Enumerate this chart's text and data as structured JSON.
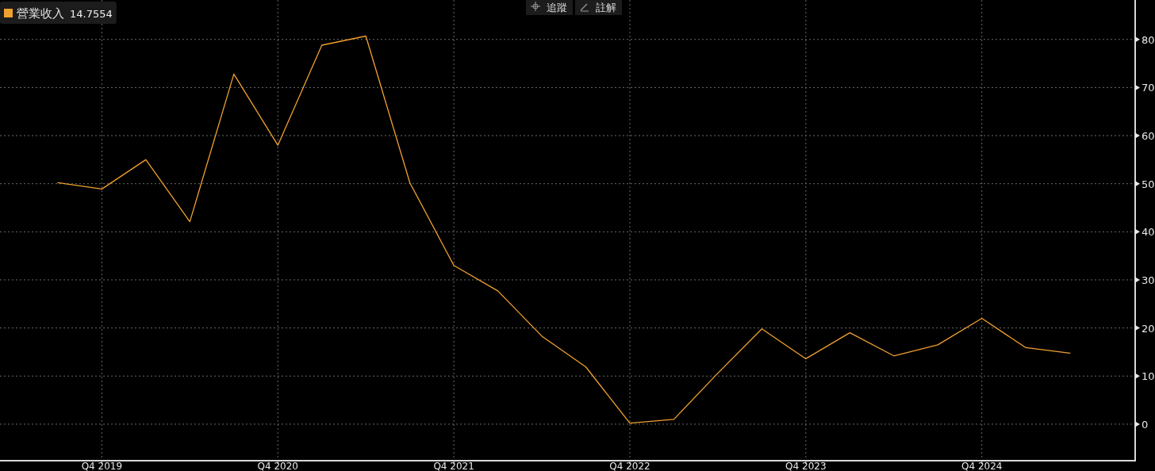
{
  "chart_data": {
    "type": "line",
    "categories": [
      null,
      "Q4 2019",
      null,
      null,
      null,
      "Q4 2020",
      null,
      null,
      null,
      "Q4 2021",
      null,
      null,
      null,
      "Q4 2022",
      null,
      null,
      null,
      "Q4 2023",
      null,
      null,
      null,
      "Q4 2024",
      null,
      null
    ],
    "series": [
      {
        "name": "營業收入",
        "color": "#f0a030",
        "values": [
          50.2,
          48.9,
          55.0,
          42.1,
          72.8,
          58.0,
          78.8,
          80.7,
          50.2,
          33.0,
          27.7,
          18.3,
          11.9,
          0.2,
          1.0,
          10.6,
          19.8,
          13.6,
          19.0,
          14.2,
          16.5,
          22.0,
          15.9,
          14.7554
        ]
      }
    ],
    "ylim": [
      -7.6,
      88.2
    ],
    "yticks": [
      0,
      10,
      20,
      30,
      40,
      50,
      60,
      70,
      80
    ],
    "grid": true,
    "legend": "top left",
    "annotations": [
      "14.7554",
      "追蹤",
      "註解"
    ]
  }
}
